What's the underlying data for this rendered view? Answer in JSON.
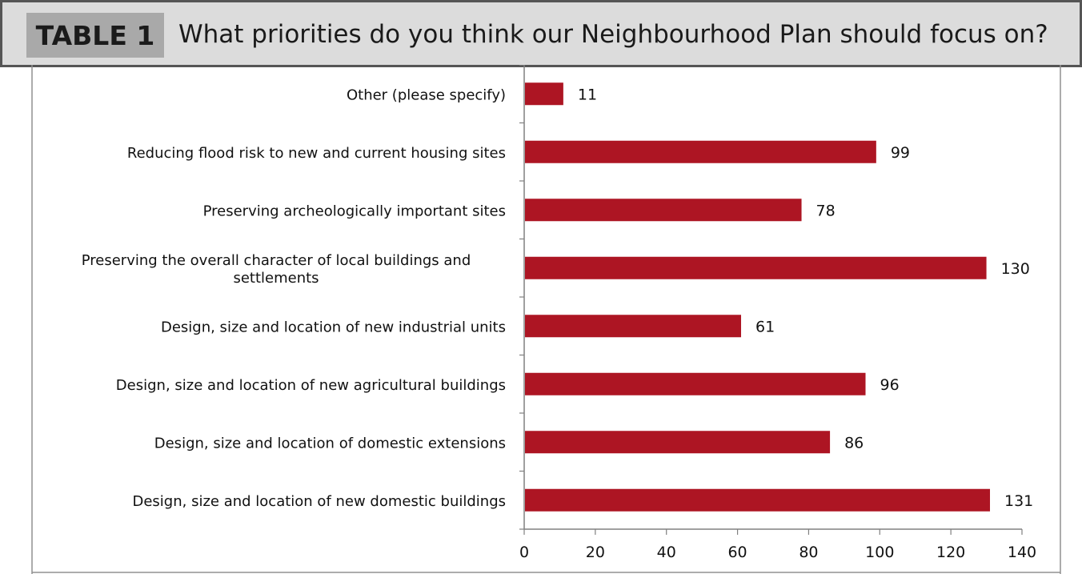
{
  "header": {
    "tag": "TABLE 1",
    "title": "What priorities do you think our Neighbourhood Plan should focus on?"
  },
  "colors": {
    "bar": "#ad1523",
    "header_bg": "#dcdcdc",
    "tag_bg": "#a9a9a9",
    "axis": "#808080"
  },
  "chart_data": {
    "type": "bar",
    "orientation": "horizontal",
    "categories": [
      "Other (please specify)",
      "Reducing flood risk to new and current housing sites",
      "Preserving archeologically important sites",
      "Preserving the overall character of local buildings and settlements",
      "Design, size and location of new industrial units",
      "Design, size and location of new agricultural buildings",
      "Design, size and location of domestic extensions",
      "Design, size and location of new domestic buildings"
    ],
    "category_lines": [
      [
        "Other (please specify)"
      ],
      [
        "Reducing flood risk to new and current housing sites"
      ],
      [
        "Preserving archeologically important sites"
      ],
      [
        "Preserving the overall character of local buildings and",
        "settlements"
      ],
      [
        "Design, size and location of new industrial units"
      ],
      [
        "Design, size and location of new agricultural buildings"
      ],
      [
        "Design, size and location of domestic extensions"
      ],
      [
        "Design, size and location of new domestic buildings"
      ]
    ],
    "values": [
      11,
      99,
      78,
      130,
      61,
      96,
      86,
      131
    ],
    "data_labels": [
      "11",
      "99",
      "78",
      "130",
      "61",
      "96",
      "86",
      "131"
    ],
    "xlim": [
      0,
      140
    ],
    "xticks": [
      0,
      20,
      40,
      60,
      80,
      100,
      120,
      140
    ],
    "xtick_labels": [
      "0",
      "20",
      "40",
      "60",
      "80",
      "100",
      "120",
      "140"
    ],
    "grid": false,
    "legend": "none"
  }
}
